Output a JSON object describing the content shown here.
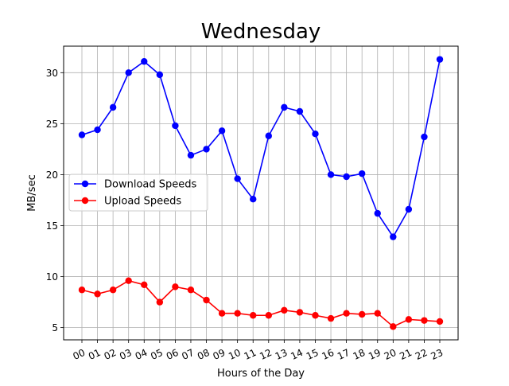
{
  "chart_data": {
    "type": "line",
    "title": "Wednesday",
    "xlabel": "Hours of the Day",
    "ylabel": "MB/sec",
    "categories": [
      "00",
      "01",
      "02",
      "03",
      "04",
      "05",
      "06",
      "07",
      "08",
      "09",
      "10",
      "11",
      "12",
      "13",
      "14",
      "15",
      "16",
      "17",
      "18",
      "19",
      "20",
      "21",
      "22",
      "23"
    ],
    "yticks": [
      5,
      10,
      15,
      20,
      25,
      30
    ],
    "ylim": [
      3.8,
      32.6
    ],
    "grid": true,
    "legend_position": "center-left",
    "series": [
      {
        "name": "Download Speeds",
        "color": "#0000ff",
        "values": [
          23.9,
          24.4,
          26.6,
          30.0,
          31.1,
          29.8,
          24.8,
          21.9,
          22.5,
          24.3,
          19.6,
          17.6,
          23.8,
          26.6,
          26.2,
          24.0,
          20.0,
          19.8,
          20.1,
          16.2,
          13.9,
          16.6,
          23.7,
          31.3
        ]
      },
      {
        "name": "Upload Speeds",
        "color": "#ff0000",
        "values": [
          8.7,
          8.3,
          8.7,
          9.6,
          9.2,
          7.5,
          9.0,
          8.7,
          7.7,
          6.4,
          6.4,
          6.2,
          6.2,
          6.7,
          6.5,
          6.2,
          5.9,
          6.4,
          6.3,
          6.4,
          5.1,
          5.8,
          5.7,
          5.6
        ]
      }
    ]
  }
}
